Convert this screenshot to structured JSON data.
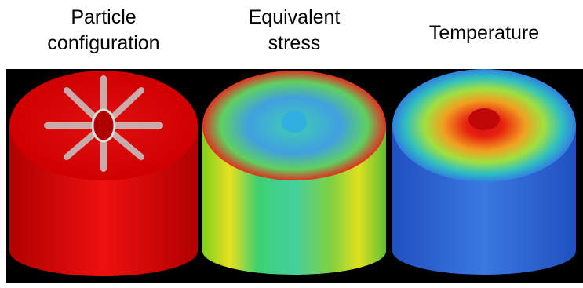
{
  "panels": [
    {
      "label_lines": [
        "Particle",
        "configuration"
      ]
    },
    {
      "label_lines": [
        "Equivalent",
        "stress"
      ]
    },
    {
      "label_lines": [
        "Temperature"
      ]
    }
  ]
}
